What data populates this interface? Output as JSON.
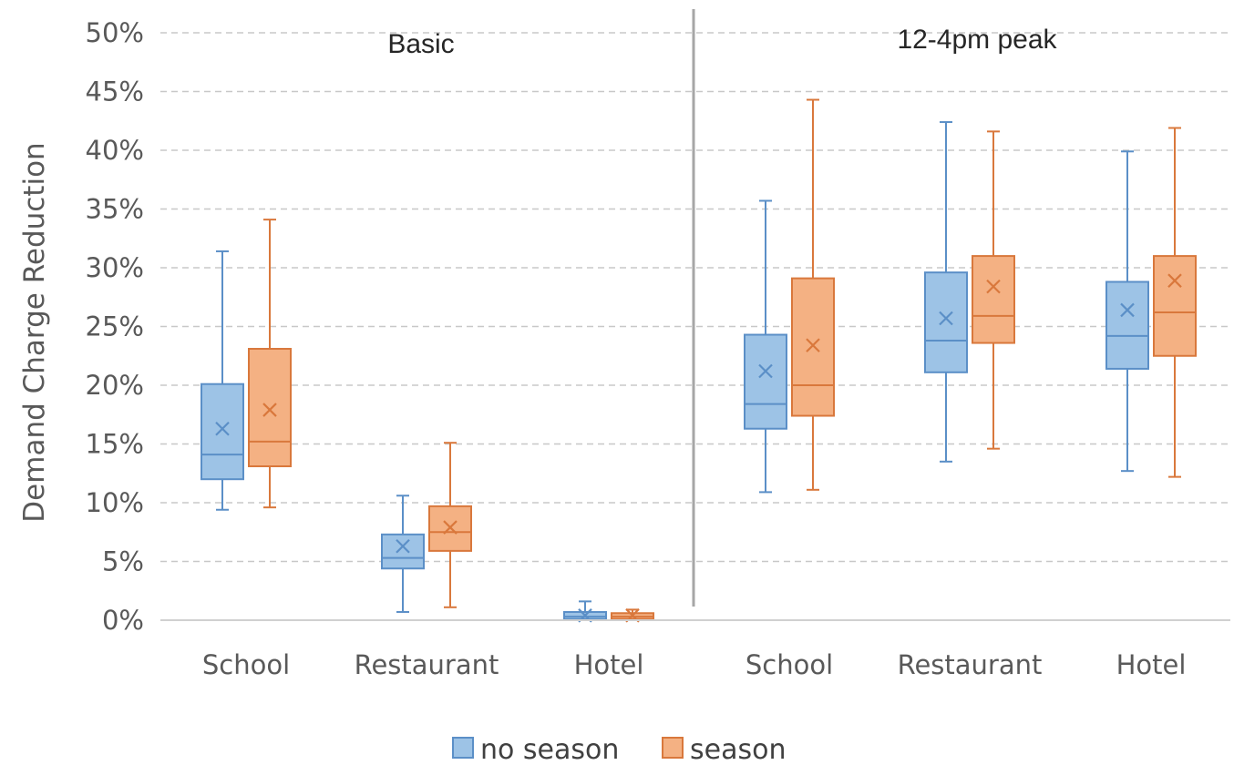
{
  "chart_data": {
    "type": "box",
    "ylabel": "Demand Charge Reduction",
    "ylim": [
      0,
      50
    ],
    "yticks": [
      "0%",
      "5%",
      "10%",
      "15%",
      "20%",
      "25%",
      "30%",
      "35%",
      "40%",
      "45%",
      "50%"
    ],
    "grid": true,
    "legend_position": "bottom",
    "colors": {
      "no season": {
        "fill": "#9dc3e6",
        "stroke": "#5b8fc7"
      },
      "season": {
        "fill": "#f4b183",
        "stroke": "#d9783c"
      }
    },
    "panels": [
      {
        "label": "Basic",
        "categories": [
          "School",
          "Restaurant",
          "Hotel"
        ],
        "series": [
          {
            "name": "no season",
            "boxes": [
              {
                "min": 9.4,
                "q1": 12.0,
                "median": 14.1,
                "q3": 20.1,
                "max": 31.4,
                "mean": 16.3
              },
              {
                "min": 0.7,
                "q1": 4.4,
                "median": 5.3,
                "q3": 7.3,
                "max": 10.6,
                "mean": 6.3
              },
              {
                "min": 0.0,
                "q1": 0.1,
                "median": 0.3,
                "q3": 0.7,
                "max": 1.6,
                "mean": 0.4
              }
            ]
          },
          {
            "name": "season",
            "boxes": [
              {
                "min": 9.6,
                "q1": 13.1,
                "median": 15.2,
                "q3": 23.1,
                "max": 34.1,
                "mean": 17.9
              },
              {
                "min": 1.1,
                "q1": 5.9,
                "median": 7.5,
                "q3": 9.7,
                "max": 15.1,
                "mean": 7.9
              },
              {
                "min": 0.0,
                "q1": 0.1,
                "median": 0.3,
                "q3": 0.6,
                "max": 0.9,
                "mean": 0.4
              }
            ]
          }
        ]
      },
      {
        "label": "12-4pm peak",
        "categories": [
          "School",
          "Restaurant",
          "Hotel"
        ],
        "series": [
          {
            "name": "no season",
            "boxes": [
              {
                "min": 10.9,
                "q1": 16.3,
                "median": 18.4,
                "q3": 24.3,
                "max": 35.7,
                "mean": 21.2
              },
              {
                "min": 13.5,
                "q1": 21.1,
                "median": 23.8,
                "q3": 29.6,
                "max": 42.4,
                "mean": 25.7
              },
              {
                "min": 12.7,
                "q1": 21.4,
                "median": 24.2,
                "q3": 28.8,
                "max": 39.9,
                "mean": 26.4
              }
            ]
          },
          {
            "name": "season",
            "boxes": [
              {
                "min": 11.1,
                "q1": 17.4,
                "median": 20.0,
                "q3": 29.1,
                "max": 44.3,
                "mean": 23.4
              },
              {
                "min": 14.6,
                "q1": 23.6,
                "median": 25.9,
                "q3": 31.0,
                "max": 41.6,
                "mean": 28.4
              },
              {
                "min": 12.2,
                "q1": 22.5,
                "median": 26.2,
                "q3": 31.0,
                "max": 41.9,
                "mean": 28.9
              }
            ]
          }
        ]
      }
    ]
  }
}
